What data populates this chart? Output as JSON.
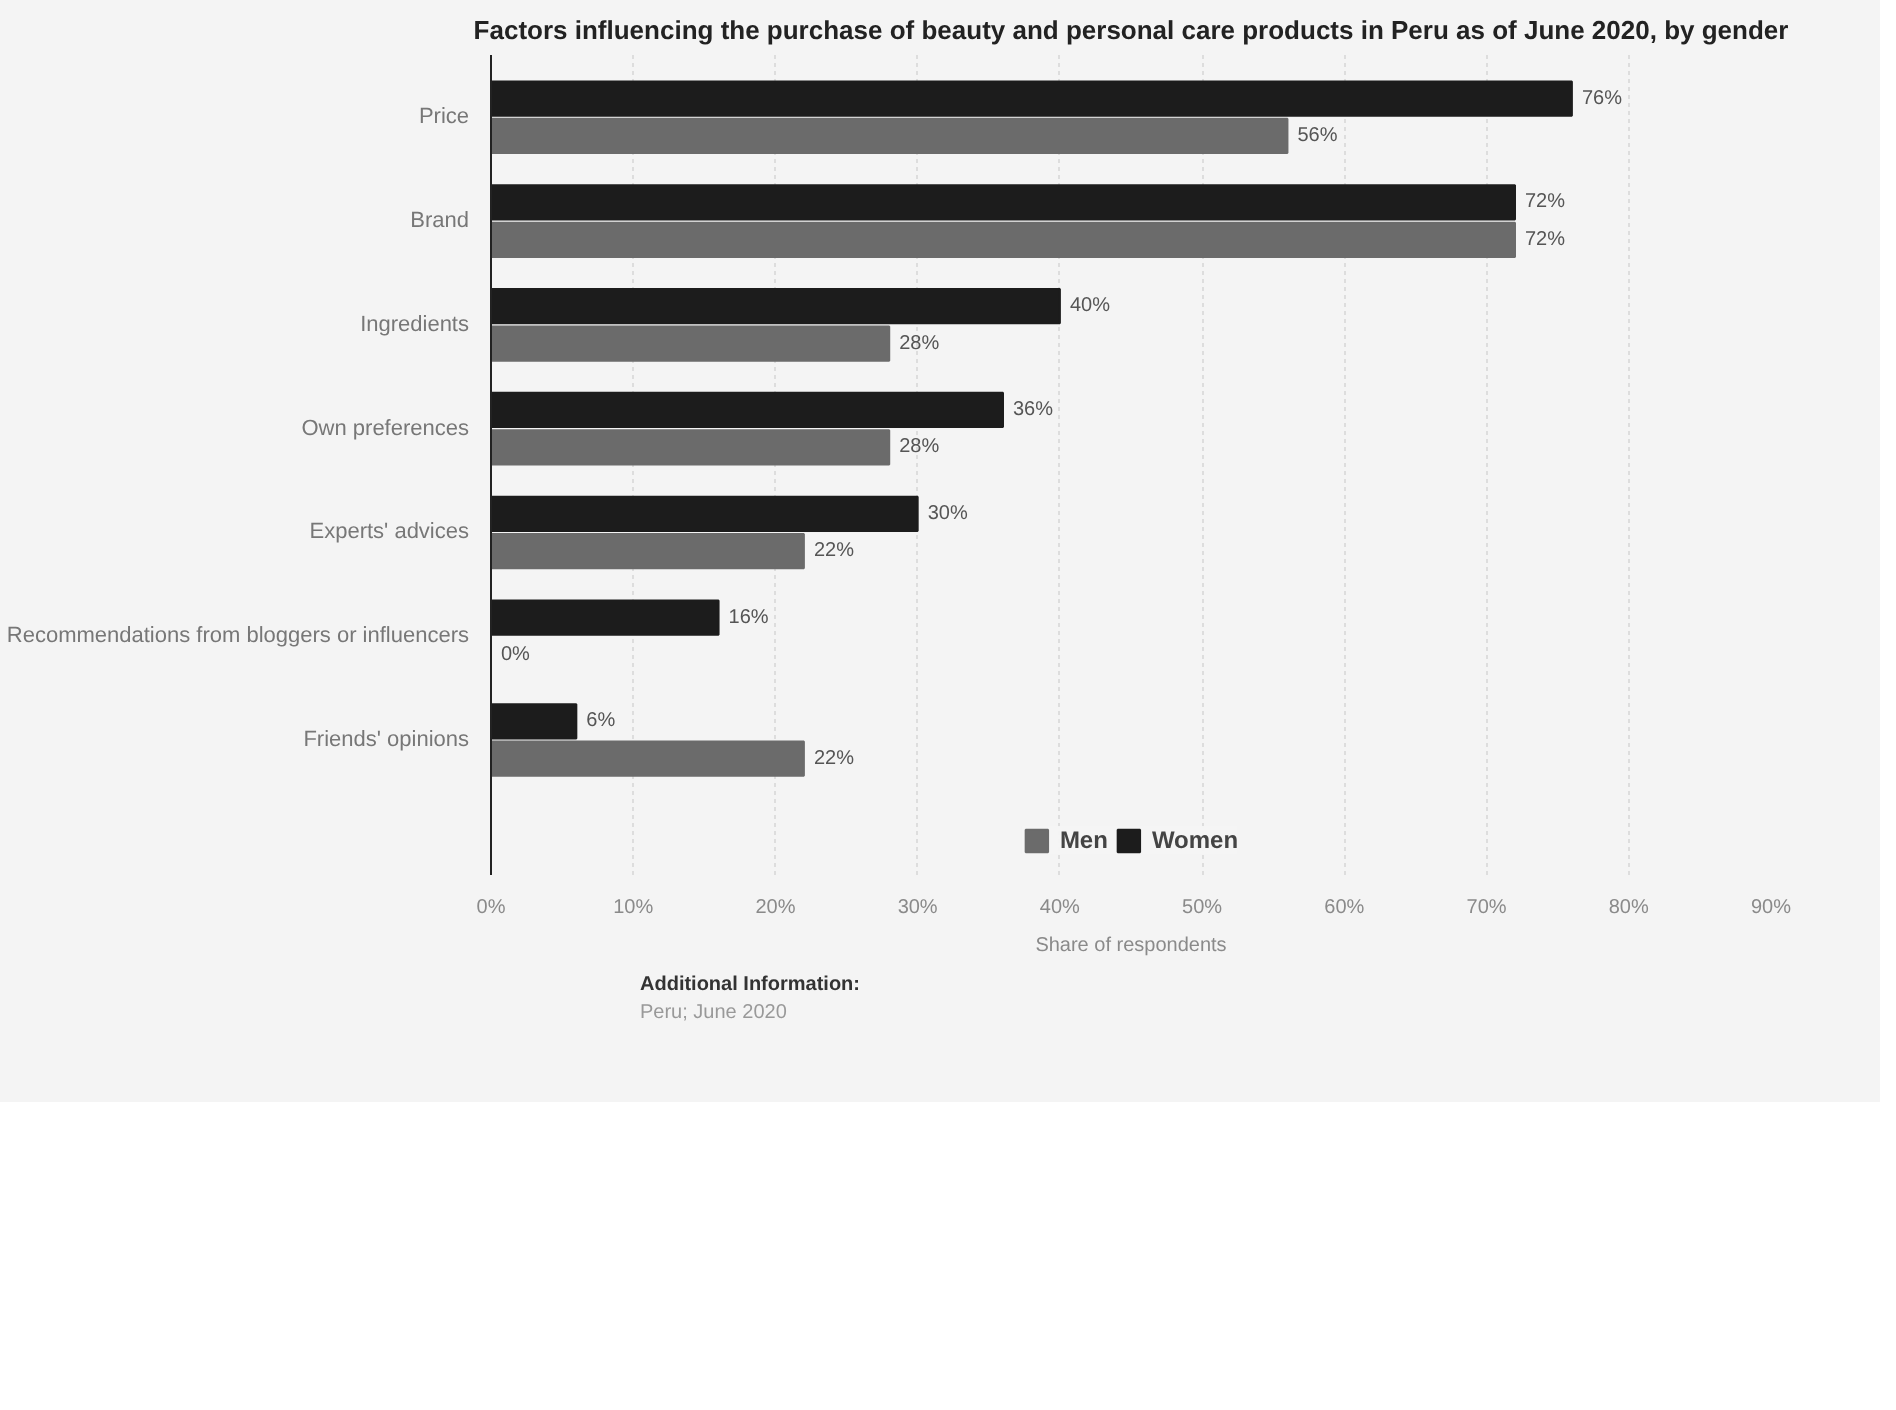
{
  "chart_data": {
    "type": "bar",
    "orientation": "horizontal",
    "title": "Factors influencing the purchase of beauty and personal care products in Peru as of June 2020, by gender",
    "xlabel": "Share of respondents",
    "categories": [
      "Price",
      "Brand",
      "Ingredients",
      "Own preferences",
      "Experts' advices",
      "Recommendations from bloggers or influencers",
      "Friends' opinions"
    ],
    "series": [
      {
        "name": "Men",
        "color": "#6b6b6b",
        "values": [
          56,
          72,
          28,
          28,
          22,
          0,
          22
        ],
        "value_labels": [
          "56%",
          "72%",
          "28%",
          "28%",
          "22%",
          "0%",
          "22%"
        ]
      },
      {
        "name": "Women",
        "color": "#1c1c1c",
        "values": [
          76,
          72,
          40,
          36,
          30,
          16,
          6
        ],
        "value_labels": [
          "76%",
          "72%",
          "40%",
          "36%",
          "30%",
          "16%",
          "6%"
        ]
      }
    ],
    "xlim": [
      0,
      90
    ],
    "xticks": [
      {
        "value": 0,
        "label": "0%"
      },
      {
        "value": 10,
        "label": "10%"
      },
      {
        "value": 20,
        "label": "20%"
      },
      {
        "value": 30,
        "label": "30%"
      },
      {
        "value": 40,
        "label": "40%"
      },
      {
        "value": 50,
        "label": "50%"
      },
      {
        "value": 60,
        "label": "60%"
      },
      {
        "value": 70,
        "label": "70%"
      },
      {
        "value": 80,
        "label": "80%"
      },
      {
        "value": 90,
        "label": "90%"
      }
    ],
    "grid": "x",
    "legend": "bottom",
    "annotations": [
      "Additional Information:",
      "Peru; June 2020"
    ]
  }
}
